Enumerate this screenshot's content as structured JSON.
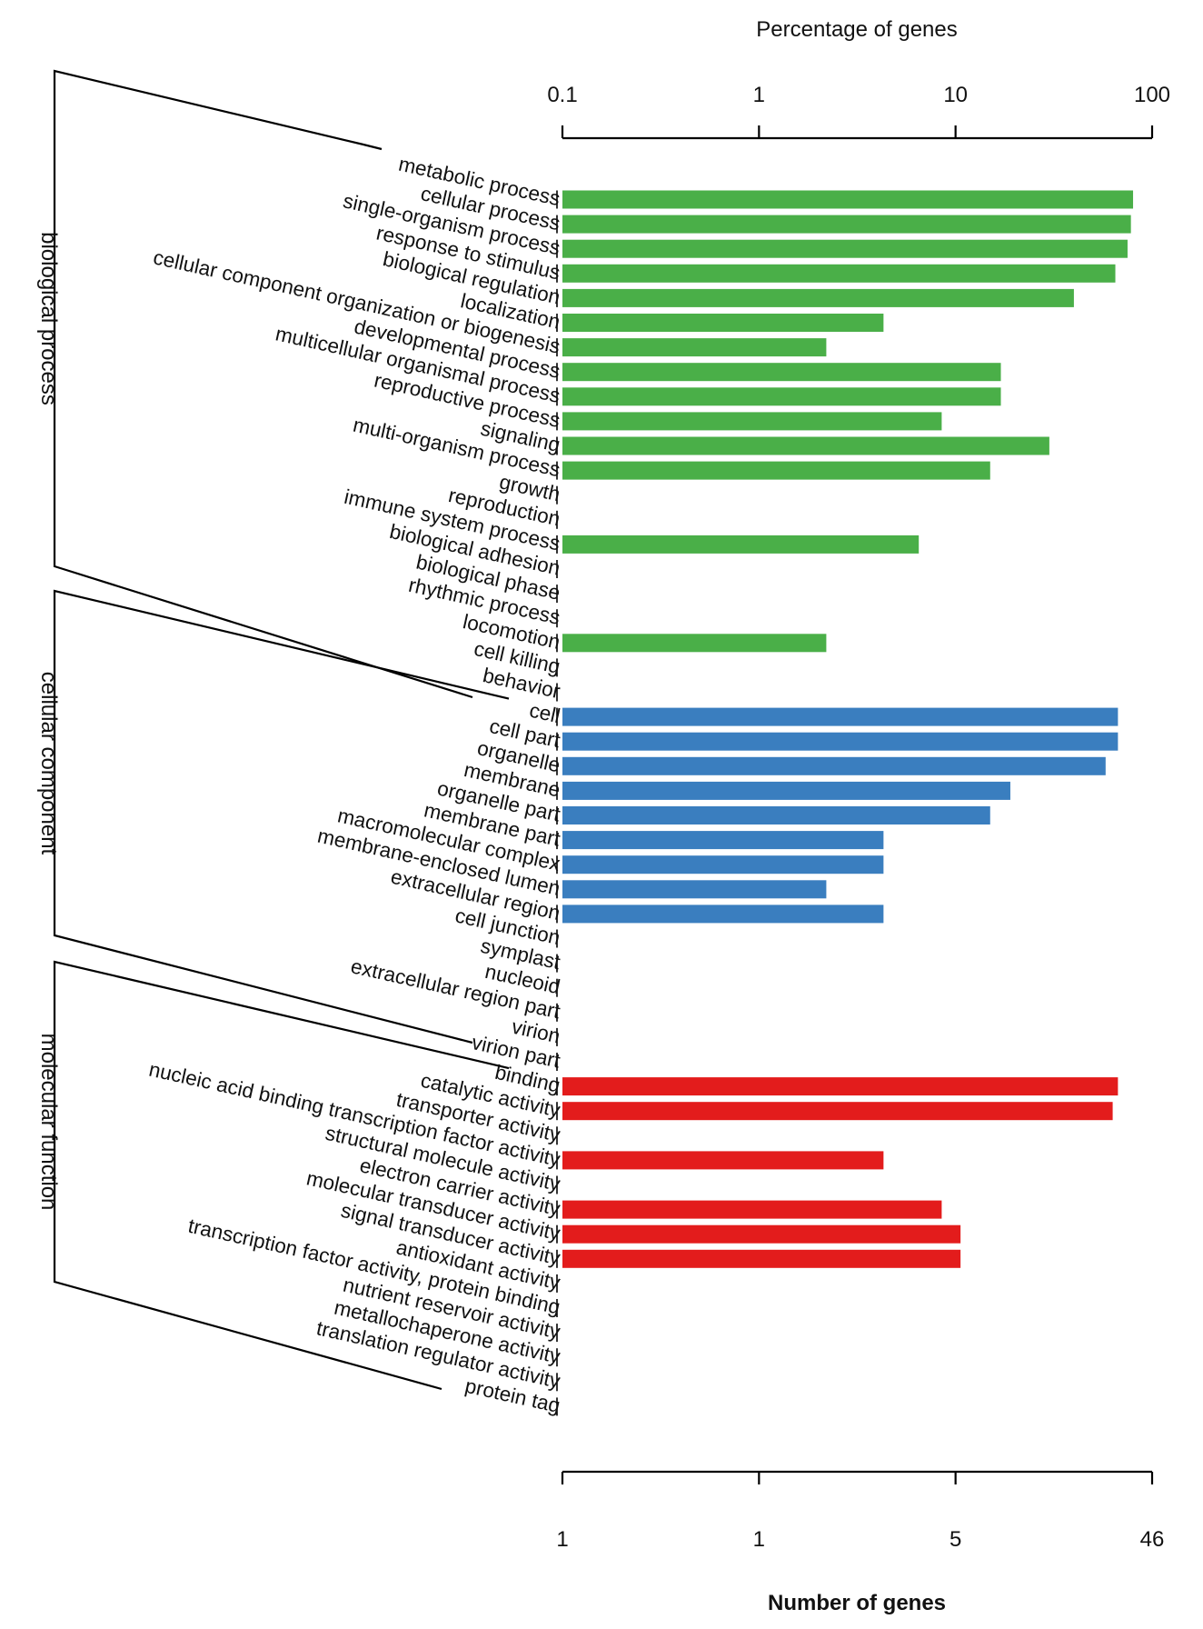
{
  "chart_data": {
    "type": "bar",
    "orientation": "horizontal",
    "x_scale": "log",
    "top_axis": {
      "title": "Percentage of genes",
      "ticks": [
        0.1,
        1,
        10,
        100
      ],
      "tick_labels": [
        "0.1",
        "1",
        "10",
        "100"
      ]
    },
    "bottom_axis": {
      "title": "Number of genes",
      "tick_labels": [
        "1",
        "1",
        "5",
        "46"
      ]
    },
    "colors": {
      "biological process": "#4aaf48",
      "cellular component": "#3a7ebf",
      "molecular function": "#e31c1c"
    },
    "groups": [
      {
        "name": "biological process",
        "color": "#4aaf48",
        "categories": [
          "metabolic process",
          "cellular process",
          "single-organism process",
          "response to stimulus",
          "biological regulation",
          "localization",
          "cellular component organization or biogenesis",
          "developmental process",
          "multicellular organismal process",
          "reproductive process",
          "signaling",
          "multi-organism process",
          "growth",
          "reproduction",
          "immune system process",
          "biological adhesion",
          "biological phase",
          "rhythmic process",
          "locomotion",
          "cell killing",
          "behavior"
        ],
        "values": [
          80,
          78,
          75,
          65,
          40,
          4.3,
          2.2,
          17,
          17,
          8.5,
          30,
          15,
          null,
          null,
          6.5,
          null,
          null,
          null,
          2.2,
          null,
          null
        ]
      },
      {
        "name": "cellular component",
        "color": "#3a7ebf",
        "categories": [
          "cell",
          "cell part",
          "organelle",
          "membrane",
          "organelle part",
          "membrane part",
          "macromolecular complex",
          "membrane-enclosed lumen",
          "extracellular region",
          "cell junction",
          "symplast",
          "nucleoid",
          "extracellular region part",
          "virion",
          "virion part"
        ],
        "values": [
          67,
          67,
          58,
          19,
          15,
          4.3,
          4.3,
          2.2,
          4.3,
          null,
          null,
          null,
          null,
          null,
          null
        ]
      },
      {
        "name": "molecular function",
        "color": "#e31c1c",
        "categories": [
          "binding",
          "catalytic activity",
          "transporter activity",
          "nucleic acid binding transcription factor activity",
          "structural molecule activity",
          "electron carrier activity",
          "molecular transducer activity",
          "signal transducer activity",
          "antioxidant activity",
          "transcription factor activity, protein binding",
          "nutrient reservoir activity",
          "metallochaperone activity",
          "translation regulator activity",
          "protein tag"
        ],
        "values": [
          67,
          63,
          null,
          4.3,
          null,
          8.5,
          10.6,
          10.6,
          null,
          null,
          null,
          null,
          null,
          null
        ]
      }
    ]
  }
}
